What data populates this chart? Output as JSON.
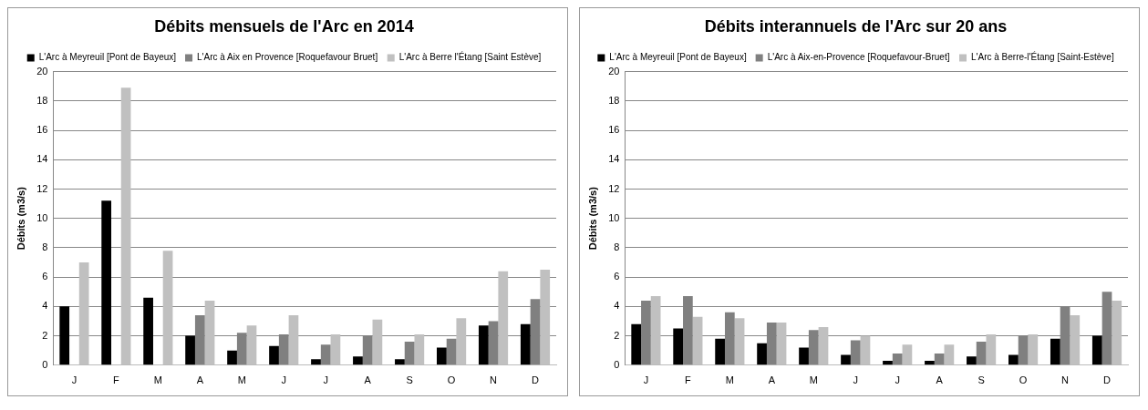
{
  "chart_data": [
    {
      "type": "bar",
      "title": "Débits mensuels de l'Arc en 2014",
      "ylabel": "Débits (m3/s)",
      "categories": [
        "J",
        "F",
        "M",
        "A",
        "M",
        "J",
        "J",
        "A",
        "S",
        "O",
        "N",
        "D"
      ],
      "series": [
        {
          "name": "L'Arc à Meyreuil [Pont de Bayeux]",
          "color": "#000000",
          "values": [
            4.0,
            11.2,
            4.6,
            2.0,
            1.0,
            1.3,
            0.4,
            0.6,
            0.4,
            1.2,
            2.7,
            2.8
          ]
        },
        {
          "name": "L'Arc à Aix en Provence [Roquefavour Bruet]",
          "color": "#808080",
          "values": [
            null,
            null,
            null,
            3.4,
            2.2,
            2.1,
            1.4,
            2.0,
            1.6,
            1.8,
            3.0,
            4.5
          ]
        },
        {
          "name": "L'Arc à Berre l'Étang [Saint Estève]",
          "color": "#c0c0c0",
          "values": [
            7.0,
            18.9,
            7.8,
            4.4,
            2.7,
            3.4,
            2.1,
            3.1,
            2.1,
            3.2,
            6.4,
            6.5
          ]
        }
      ],
      "ylim": [
        0,
        20
      ],
      "yticks": [
        0,
        2,
        4,
        6,
        8,
        10,
        12,
        14,
        16,
        18,
        20
      ],
      "grid": "y",
      "legend": "top"
    },
    {
      "type": "bar",
      "title": "Débits interannuels de l'Arc sur 20 ans",
      "ylabel": "Débits (m3/s)",
      "categories": [
        "J",
        "F",
        "M",
        "A",
        "M",
        "J",
        "J",
        "A",
        "S",
        "O",
        "N",
        "D"
      ],
      "series": [
        {
          "name": "L'Arc à Meyreuil [Pont de Bayeux]",
          "color": "#000000",
          "values": [
            2.8,
            2.5,
            1.8,
            1.5,
            1.2,
            0.7,
            0.3,
            0.3,
            0.6,
            0.7,
            1.8,
            2.0
          ]
        },
        {
          "name": "L'Arc à Aix-en-Provence [Roquefavour-Bruet]",
          "color": "#808080",
          "values": [
            4.4,
            4.7,
            3.6,
            2.9,
            2.4,
            1.7,
            0.8,
            0.8,
            1.6,
            2.0,
            4.0,
            5.0
          ]
        },
        {
          "name": "L'Arc à Berre-l'Étang [Saint-Estève]",
          "color": "#c0c0c0",
          "values": [
            4.7,
            3.3,
            3.2,
            2.9,
            2.6,
            2.0,
            1.4,
            1.4,
            2.1,
            2.1,
            3.4,
            4.4
          ]
        }
      ],
      "ylim": [
        0,
        20
      ],
      "yticks": [
        0,
        2,
        4,
        6,
        8,
        10,
        12,
        14,
        16,
        18,
        20
      ],
      "grid": "y",
      "legend": "top"
    }
  ]
}
